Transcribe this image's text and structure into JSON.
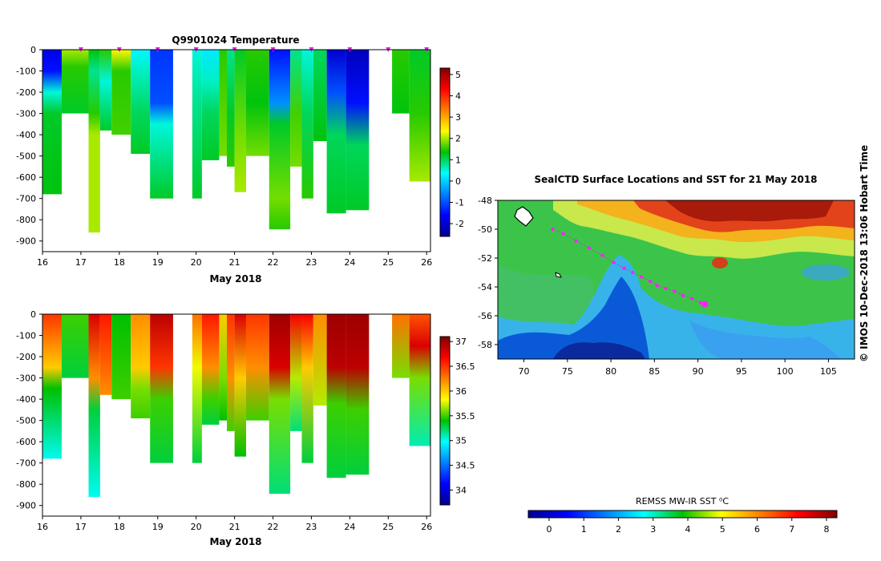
{
  "chart_data": [
    {
      "type": "heatmap",
      "title": "Q9901024  Temperature",
      "xlabel": "May 2018",
      "ylabel": "",
      "x_ticks": [
        "16",
        "17",
        "18",
        "19",
        "20",
        "21",
        "22",
        "23",
        "24",
        "25",
        "26"
      ],
      "y_ticks": [
        "0",
        "-100",
        "-200",
        "-300",
        "-400",
        "-500",
        "-600",
        "-700",
        "-800",
        "-900"
      ],
      "xlim": [
        16,
        26.1
      ],
      "ylim": [
        -950,
        0
      ],
      "colorbar_ticks": [
        "5",
        "4",
        "3",
        "2",
        "1",
        "0",
        "-1",
        "-2"
      ],
      "colorbar_range": [
        -2.6,
        5.3
      ],
      "profile_markers_x": [
        17,
        18,
        19,
        20,
        21,
        22,
        23,
        24,
        25,
        26
      ],
      "profiles": [
        {
          "x0": 16.0,
          "x1": 16.5,
          "maxdepth": 680,
          "stops": [
            [
              0,
              -1.8
            ],
            [
              100,
              -1.5
            ],
            [
              200,
              0.5
            ],
            [
              300,
              1.2
            ],
            [
              680,
              1.3
            ]
          ]
        },
        {
          "x0": 16.5,
          "x1": 17.2,
          "maxdepth": 300,
          "stops": [
            [
              0,
              2.0
            ],
            [
              80,
              1.5
            ],
            [
              300,
              1.2
            ]
          ]
        },
        {
          "x0": 17.2,
          "x1": 17.5,
          "maxdepth": 860,
          "stops": [
            [
              0,
              1.3
            ],
            [
              100,
              0.8
            ],
            [
              300,
              1.5
            ],
            [
              400,
              2.0
            ],
            [
              860,
              2.0
            ]
          ]
        },
        {
          "x0": 17.5,
          "x1": 17.8,
          "maxdepth": 380,
          "stops": [
            [
              0,
              1.5
            ],
            [
              150,
              0.5
            ],
            [
              380,
              1.2
            ]
          ]
        },
        {
          "x0": 17.8,
          "x1": 18.3,
          "maxdepth": 400,
          "stops": [
            [
              0,
              2.4
            ],
            [
              100,
              1.5
            ],
            [
              400,
              1.6
            ]
          ]
        },
        {
          "x0": 18.3,
          "x1": 18.8,
          "maxdepth": 490,
          "stops": [
            [
              0,
              0.3
            ],
            [
              100,
              0.6
            ],
            [
              300,
              1.0
            ],
            [
              490,
              1.2
            ]
          ]
        },
        {
          "x0": 18.8,
          "x1": 19.4,
          "maxdepth": 700,
          "stops": [
            [
              0,
              -1.2
            ],
            [
              250,
              -1.0
            ],
            [
              350,
              0.5
            ],
            [
              700,
              1.2
            ]
          ]
        },
        {
          "x0": 19.9,
          "x1": 20.15,
          "maxdepth": 700,
          "stops": [
            [
              0,
              0.5
            ],
            [
              250,
              0.8
            ],
            [
              700,
              1.2
            ]
          ]
        },
        {
          "x0": 20.15,
          "x1": 20.6,
          "maxdepth": 520,
          "stops": [
            [
              0,
              0.2
            ],
            [
              150,
              0.6
            ],
            [
              300,
              1.0
            ],
            [
              520,
              1.2
            ]
          ]
        },
        {
          "x0": 20.6,
          "x1": 20.8,
          "maxdepth": 500,
          "stops": [
            [
              0,
              1.5
            ],
            [
              500,
              1.8
            ]
          ]
        },
        {
          "x0": 20.8,
          "x1": 21.0,
          "maxdepth": 550,
          "stops": [
            [
              0,
              0.8
            ],
            [
              300,
              1.2
            ],
            [
              550,
              1.5
            ]
          ]
        },
        {
          "x0": 21.0,
          "x1": 21.3,
          "maxdepth": 670,
          "stops": [
            [
              0,
              1.2
            ],
            [
              400,
              1.8
            ],
            [
              670,
              2.0
            ]
          ]
        },
        {
          "x0": 21.3,
          "x1": 21.9,
          "maxdepth": 500,
          "stops": [
            [
              0,
              1.5
            ],
            [
              250,
              1.3
            ],
            [
              500,
              1.8
            ]
          ]
        },
        {
          "x0": 21.9,
          "x1": 22.45,
          "maxdepth": 845,
          "stops": [
            [
              0,
              -1.5
            ],
            [
              250,
              -0.5
            ],
            [
              350,
              1.2
            ],
            [
              700,
              1.8
            ],
            [
              845,
              1.5
            ]
          ]
        },
        {
          "x0": 22.45,
          "x1": 22.75,
          "maxdepth": 550,
          "stops": [
            [
              0,
              0.8
            ],
            [
              300,
              1.6
            ],
            [
              550,
              1.8
            ]
          ]
        },
        {
          "x0": 22.75,
          "x1": 23.05,
          "maxdepth": 700,
          "stops": [
            [
              0,
              0.5
            ],
            [
              300,
              1.0
            ],
            [
              700,
              1.5
            ]
          ]
        },
        {
          "x0": 23.05,
          "x1": 23.4,
          "maxdepth": 430,
          "stops": [
            [
              0,
              1.0
            ],
            [
              430,
              1.3
            ]
          ]
        },
        {
          "x0": 23.4,
          "x1": 23.9,
          "maxdepth": 770,
          "stops": [
            [
              0,
              -2.0
            ],
            [
              200,
              -1.0
            ],
            [
              400,
              1.0
            ],
            [
              770,
              1.2
            ]
          ]
        },
        {
          "x0": 23.9,
          "x1": 24.5,
          "maxdepth": 755,
          "stops": [
            [
              0,
              -2.2
            ],
            [
              250,
              -1.5
            ],
            [
              450,
              1.0
            ],
            [
              755,
              1.2
            ]
          ]
        },
        {
          "x0": 25.1,
          "x1": 25.55,
          "maxdepth": 300,
          "stops": [
            [
              0,
              1.5
            ],
            [
              300,
              1.3
            ]
          ]
        },
        {
          "x0": 25.55,
          "x1": 26.1,
          "maxdepth": 620,
          "stops": [
            [
              0,
              1.2
            ],
            [
              300,
              1.5
            ],
            [
              620,
              2.0
            ]
          ]
        }
      ]
    },
    {
      "type": "heatmap",
      "title": "",
      "xlabel": "May 2018",
      "ylabel": "",
      "x_ticks": [
        "16",
        "17",
        "18",
        "19",
        "20",
        "21",
        "22",
        "23",
        "24",
        "25",
        "26"
      ],
      "y_ticks": [
        "0",
        "-100",
        "-200",
        "-300",
        "-400",
        "-500",
        "-600",
        "-700",
        "-800",
        "-900"
      ],
      "xlim": [
        16,
        26.1
      ],
      "ylim": [
        -950,
        0
      ],
      "colorbar_ticks": [
        "37",
        "36.5",
        "36",
        "35.5",
        "35",
        "34.5",
        "34"
      ],
      "colorbar_range": [
        33.7,
        37.1
      ],
      "profiles": [
        {
          "x0": 16.0,
          "x1": 16.5,
          "maxdepth": 680,
          "stops": [
            [
              0,
              36.5
            ],
            [
              250,
              36.0
            ],
            [
              350,
              35.4
            ],
            [
              680,
              35.0
            ]
          ]
        },
        {
          "x0": 16.5,
          "x1": 17.2,
          "maxdepth": 300,
          "stops": [
            [
              0,
              35.5
            ],
            [
              300,
              35.3
            ]
          ]
        },
        {
          "x0": 17.2,
          "x1": 17.5,
          "maxdepth": 860,
          "stops": [
            [
              0,
              36.8
            ],
            [
              300,
              36.2
            ],
            [
              450,
              35.3
            ],
            [
              860,
              35.0
            ]
          ]
        },
        {
          "x0": 17.5,
          "x1": 17.8,
          "maxdepth": 380,
          "stops": [
            [
              0,
              36.6
            ],
            [
              380,
              36.2
            ]
          ]
        },
        {
          "x0": 17.8,
          "x1": 18.3,
          "maxdepth": 400,
          "stops": [
            [
              0,
              35.4
            ],
            [
              400,
              35.5
            ]
          ]
        },
        {
          "x0": 18.3,
          "x1": 18.8,
          "maxdepth": 490,
          "stops": [
            [
              0,
              36.2
            ],
            [
              250,
              36.0
            ],
            [
              350,
              35.6
            ],
            [
              490,
              35.5
            ]
          ]
        },
        {
          "x0": 18.8,
          "x1": 19.4,
          "maxdepth": 700,
          "stops": [
            [
              0,
              36.9
            ],
            [
              250,
              36.5
            ],
            [
              400,
              35.5
            ],
            [
              700,
              35.3
            ]
          ]
        },
        {
          "x0": 19.9,
          "x1": 20.15,
          "maxdepth": 700,
          "stops": [
            [
              0,
              36.3
            ],
            [
              250,
              35.8
            ],
            [
              700,
              35.3
            ]
          ]
        },
        {
          "x0": 20.15,
          "x1": 20.6,
          "maxdepth": 520,
          "stops": [
            [
              0,
              36.6
            ],
            [
              250,
              36.2
            ],
            [
              400,
              35.5
            ],
            [
              520,
              35.3
            ]
          ]
        },
        {
          "x0": 20.6,
          "x1": 20.8,
          "maxdepth": 500,
          "stops": [
            [
              0,
              36.0
            ],
            [
              300,
              35.6
            ],
            [
              500,
              35.4
            ]
          ]
        },
        {
          "x0": 20.8,
          "x1": 21.0,
          "maxdepth": 550,
          "stops": [
            [
              0,
              36.5
            ],
            [
              300,
              36.2
            ],
            [
              550,
              35.5
            ]
          ]
        },
        {
          "x0": 21.0,
          "x1": 21.3,
          "maxdepth": 670,
          "stops": [
            [
              0,
              36.8
            ],
            [
              300,
              36.0
            ],
            [
              670,
              35.4
            ]
          ]
        },
        {
          "x0": 21.3,
          "x1": 21.9,
          "maxdepth": 500,
          "stops": [
            [
              0,
              36.5
            ],
            [
              250,
              36.2
            ],
            [
              500,
              35.5
            ]
          ]
        },
        {
          "x0": 21.9,
          "x1": 22.45,
          "maxdepth": 845,
          "stops": [
            [
              0,
              37.0
            ],
            [
              250,
              36.8
            ],
            [
              400,
              35.6
            ],
            [
              845,
              35.2
            ]
          ]
        },
        {
          "x0": 22.45,
          "x1": 22.75,
          "maxdepth": 550,
          "stops": [
            [
              0,
              36.7
            ],
            [
              300,
              35.7
            ],
            [
              550,
              35.2
            ]
          ]
        },
        {
          "x0": 22.75,
          "x1": 23.05,
          "maxdepth": 700,
          "stops": [
            [
              0,
              36.7
            ],
            [
              250,
              36.0
            ],
            [
              700,
              35.3
            ]
          ]
        },
        {
          "x0": 23.05,
          "x1": 23.4,
          "maxdepth": 430,
          "stops": [
            [
              0,
              36.2
            ],
            [
              430,
              35.7
            ]
          ]
        },
        {
          "x0": 23.4,
          "x1": 23.9,
          "maxdepth": 770,
          "stops": [
            [
              0,
              37.0
            ],
            [
              250,
              36.9
            ],
            [
              420,
              35.5
            ],
            [
              770,
              35.3
            ]
          ]
        },
        {
          "x0": 23.9,
          "x1": 24.5,
          "maxdepth": 755,
          "stops": [
            [
              0,
              37.0
            ],
            [
              250,
              36.9
            ],
            [
              450,
              35.5
            ],
            [
              755,
              35.3
            ]
          ]
        },
        {
          "x0": 25.1,
          "x1": 25.55,
          "maxdepth": 300,
          "stops": [
            [
              0,
              36.3
            ],
            [
              300,
              35.6
            ]
          ]
        },
        {
          "x0": 25.55,
          "x1": 26.1,
          "maxdepth": 620,
          "stops": [
            [
              0,
              36.4
            ],
            [
              150,
              36.8
            ],
            [
              300,
              35.6
            ],
            [
              620,
              35.1
            ]
          ]
        }
      ]
    },
    {
      "type": "heatmap",
      "title": "SealCTD Surface Locations and SST for 21 May 2018",
      "x_ticks": [
        "70",
        "75",
        "80",
        "85",
        "90",
        "95",
        "100",
        "105"
      ],
      "y_ticks": [
        "-48",
        "-50",
        "-52",
        "-54",
        "-56",
        "-58"
      ],
      "xlim": [
        67,
        108
      ],
      "ylim": [
        -59,
        -48
      ],
      "colorbar_label": "REMSS MW-IR SST ⁰C",
      "colorbar_ticks": [
        "0",
        "1",
        "2",
        "3",
        "4",
        "5",
        "6",
        "7",
        "8"
      ],
      "colorbar_range": [
        -0.6,
        8.3
      ],
      "track_lon": [
        73.3,
        74.5,
        76,
        77.5,
        79,
        80.3,
        81.5,
        82.5,
        83.5,
        84.5,
        85.3,
        86.3,
        87.3,
        88.3,
        89.3,
        90.3,
        90.8
      ],
      "track_lat": [
        -50.0,
        -50.3,
        -50.8,
        -51.3,
        -51.8,
        -52.3,
        -52.7,
        -53.0,
        -53.3,
        -53.6,
        -53.9,
        -54.1,
        -54.3,
        -54.6,
        -54.8,
        -55.1,
        -55.2
      ]
    }
  ],
  "side_text": "©  IMOS 10-Dec-2018 13:06 Hobart Time"
}
